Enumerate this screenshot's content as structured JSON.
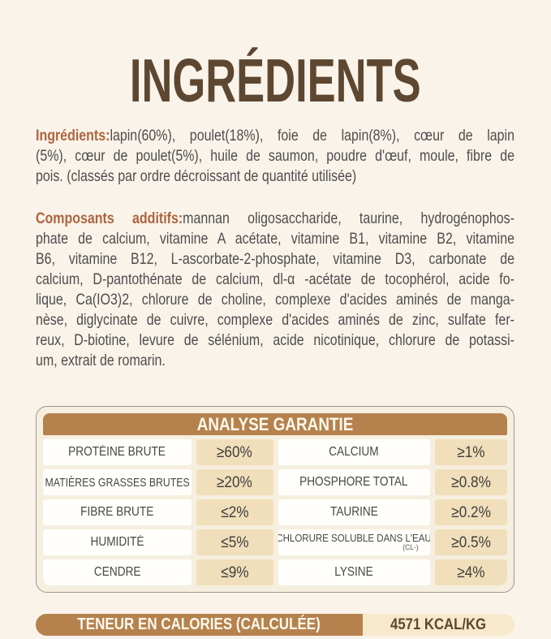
{
  "title": "INGRÉDIENTS",
  "paragraphs": {
    "ingredients": {
      "label": "Ingrédients:",
      "line1": "lapin(60%), poulet(18%), foie de lapin(8%), cœur de lapin",
      "lines": {
        "0": "(5%), cœur de poulet(5%), huile de saumon, poudre d'œuf, moule, fibre de"
      },
      "last": "pois. (classés par ordre décroissant de quantité utilisée)"
    },
    "additives": {
      "label": "Composants additifs:",
      "line1": "mannan oligosaccharide, taurine, hydrogénophos-",
      "lines": {
        "0": "phate de calcium, vitamine A acétate, vitamine B1, vitamine B2, vitamine",
        "1": "B6, vitamine B12, L-ascorbate-2-phosphate, vitamine D3, carbonate de",
        "2": "calcium, D-pantothénate de calcium, dl-α -acétate de tocophérol, acide fo-",
        "3": "lique, Ca(IO3)2, chlorure de choline, complexe d'acides aminés de manga-",
        "4": "nèse, diglycinate de cuivre, complexe d'acides aminés de zinc, sulfate fer-",
        "5": "reux, D-biotine, levure de sélénium, acide nicotinique, chlorure de potassi-"
      },
      "last": "um, extrait de romarin."
    }
  },
  "analysis": {
    "header": "ANALYSE GARANTIE",
    "rows": {
      "0": {
        "n1": "PROTÉINE BRUTE",
        "v1": "≥60%",
        "n2": "CALCIUM",
        "v2": "≥1%"
      },
      "1": {
        "n1": "MATIÈRES GRASSES BRUTES",
        "v1": "≥20%",
        "n2": "PHOSPHORE TOTAL",
        "v2": "≥0.8%"
      },
      "2": {
        "n1": "FIBRE BRUTE",
        "v1": "≤2%",
        "n2": "TAURINE",
        "v2": "≥0.2%"
      },
      "3": {
        "n1": "HUMIDITÉ",
        "v1": "≤5%",
        "n2": "CHLORURE SOLUBLE DANS L'EAU",
        "n2_sub": "(CL-)",
        "v2": "≥0.5%"
      },
      "4": {
        "n1": "CENDRE",
        "v1": "≤9%",
        "n2": "LYSINE",
        "v2": "≥4%"
      }
    }
  },
  "calories": {
    "label": "TENEUR EN CALORIES (CALCULÉE)",
    "value": "4571 KCAL/KG"
  },
  "colors": {
    "page_background": "#faf3ea",
    "title_brown": "#5d4731",
    "accent_rust": "#ac6540",
    "body_text": "#4d4d4d",
    "header_brown": "#b5824e",
    "value_cell_tan": "#f1dfbb",
    "label_cell_white": "#fffefa",
    "table_border": "#9c978b",
    "bar_cream": "#f8e9cd"
  }
}
